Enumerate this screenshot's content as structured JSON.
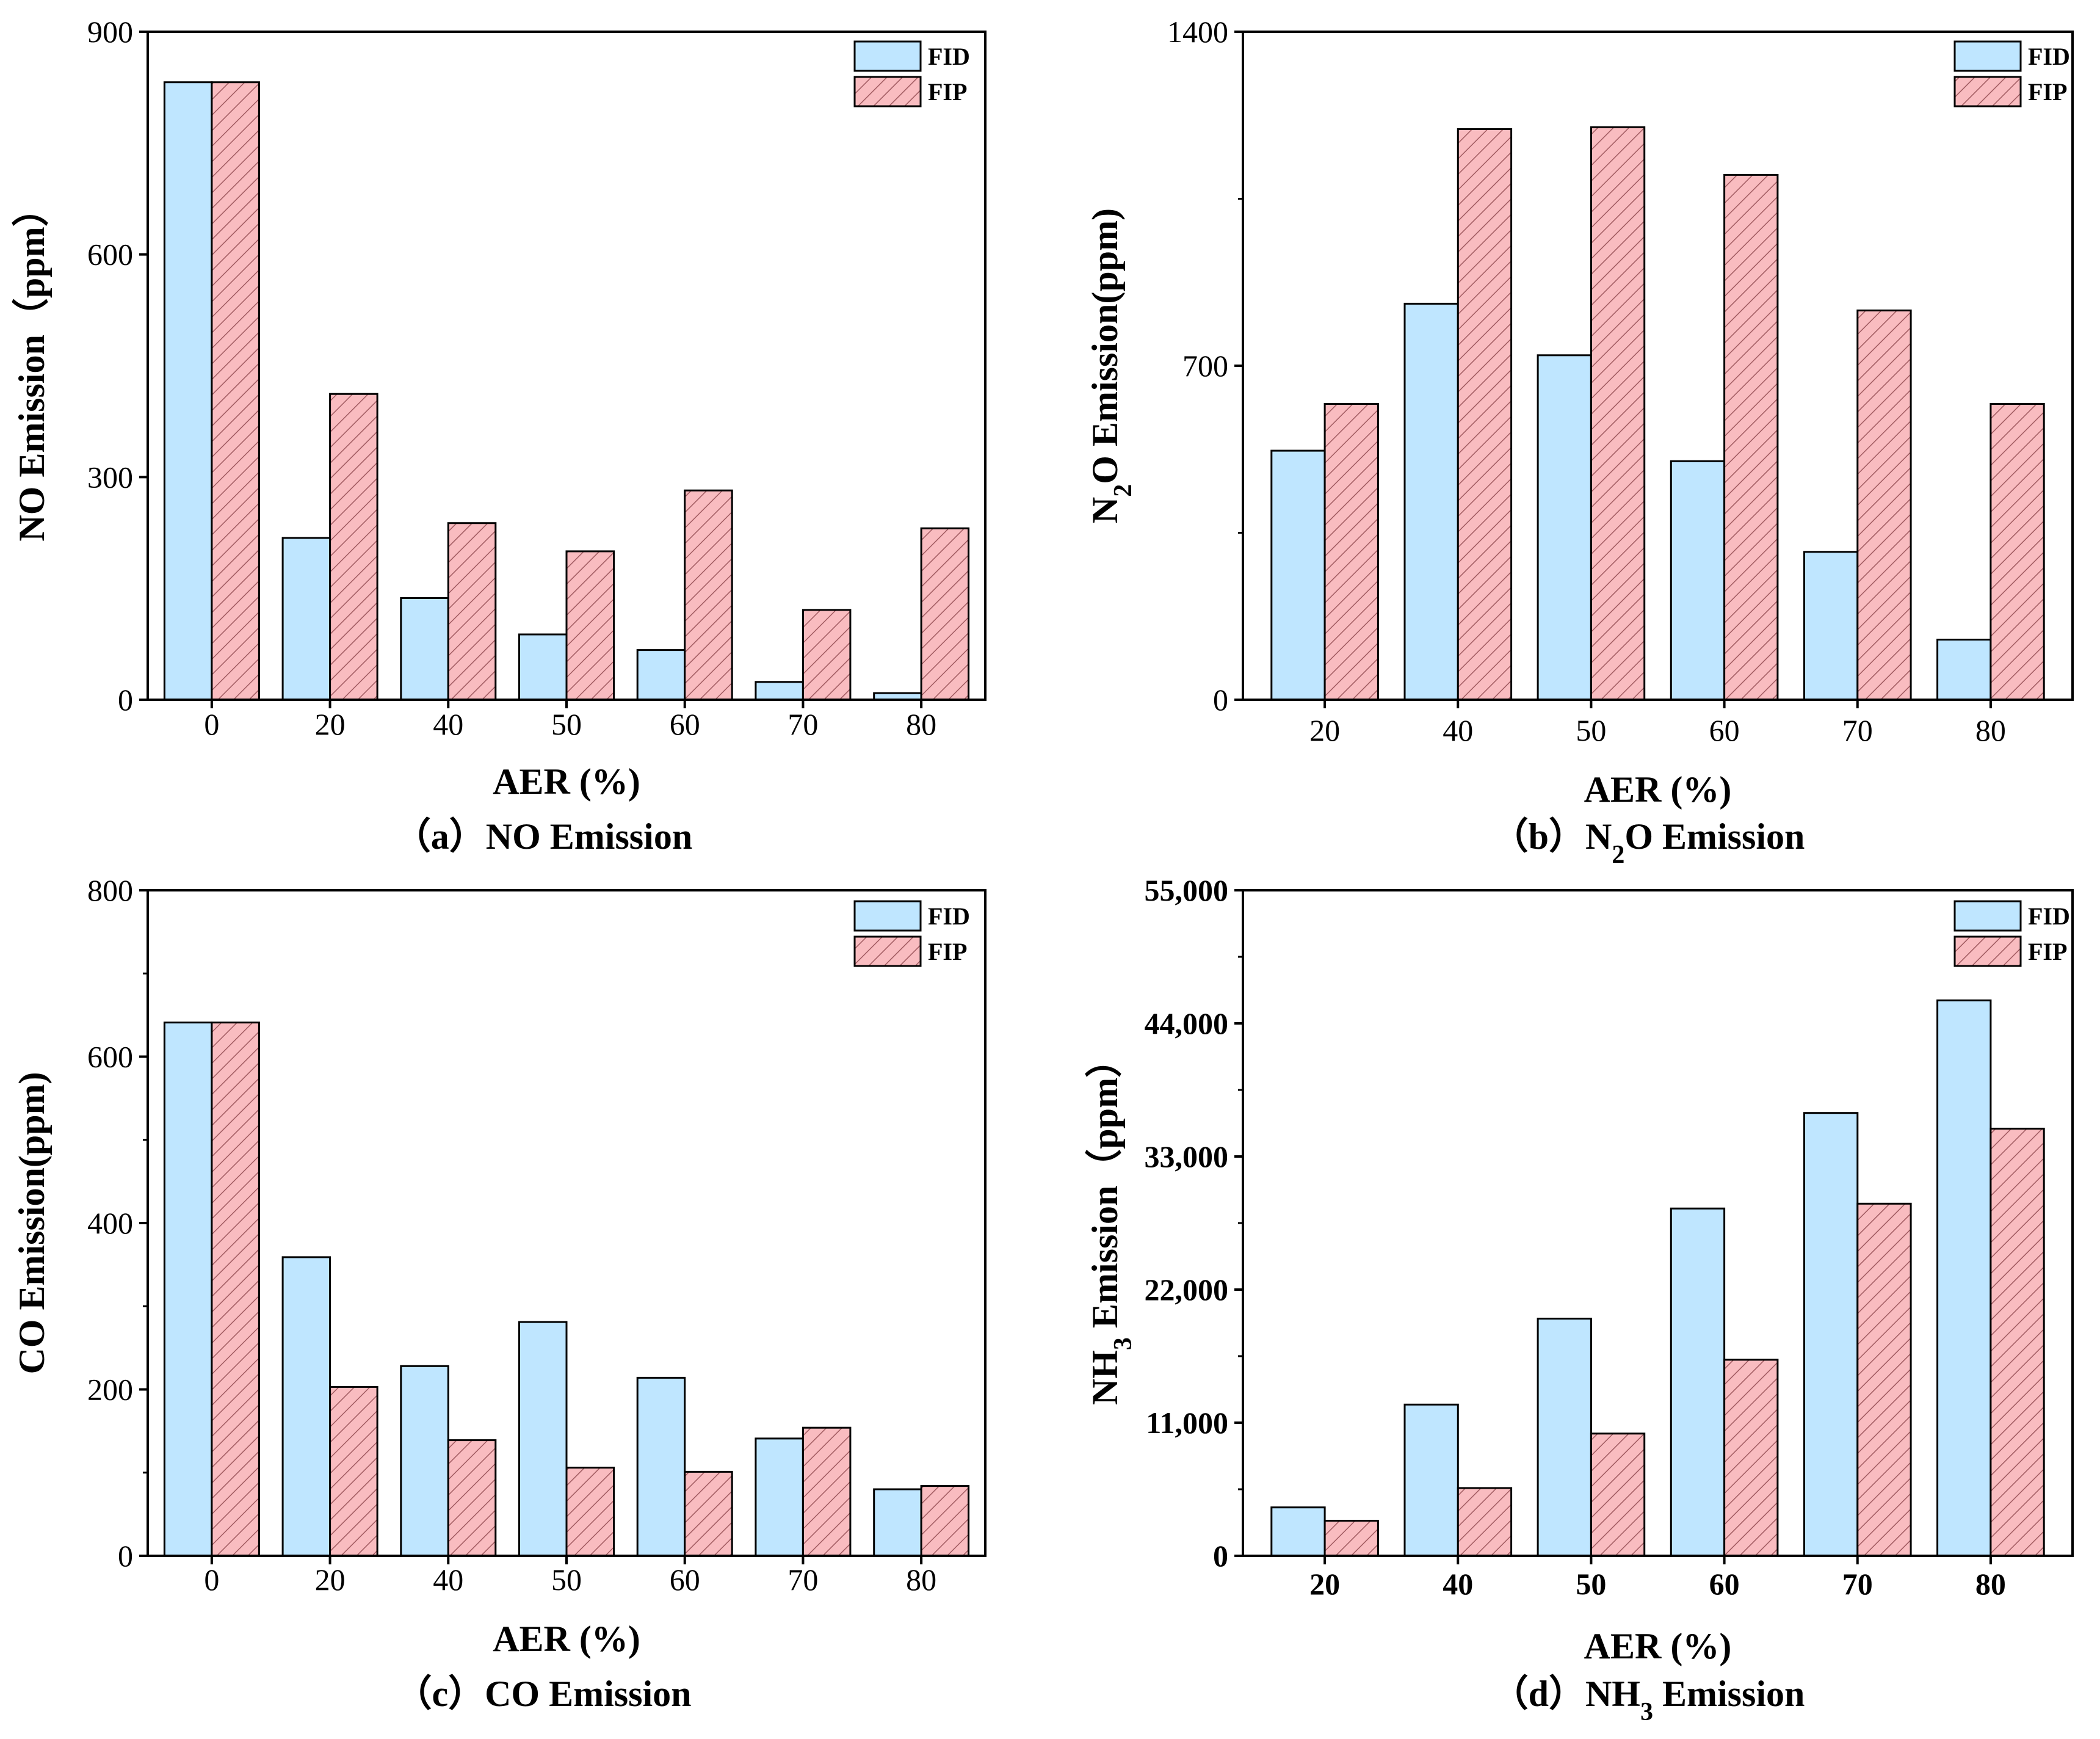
{
  "legend": {
    "fid_label": "FID",
    "fip_label": "FIP"
  },
  "colors": {
    "fid": "#bfe6ff",
    "fip": "#f9bcc0",
    "fip_hatch": "#a05a60",
    "axis": "#000000"
  },
  "chart_data": [
    {
      "id": "a",
      "type": "bar",
      "caption": {
        "prefix": "（a）",
        "text": "NO Emission"
      },
      "ylabel": "NO Emission（ppm）",
      "xlabel": "AER (%)",
      "categories": [
        "0",
        "20",
        "40",
        "50",
        "60",
        "70",
        "80"
      ],
      "ylim": [
        0,
        900
      ],
      "yticks": [
        "0",
        "300",
        "600",
        "900"
      ],
      "ytick_values": [
        0,
        300,
        600,
        900
      ],
      "series": [
        {
          "name": "FID",
          "values": [
            832,
            218,
            137,
            88,
            67,
            24,
            9
          ]
        },
        {
          "name": "FIP",
          "values": [
            832,
            412,
            238,
            200,
            282,
            121,
            231
          ]
        }
      ]
    },
    {
      "id": "b",
      "type": "bar",
      "caption": {
        "prefix": "（b）",
        "text": "N2O Emission"
      },
      "ylabel": "N2O Emission(ppm)",
      "xlabel": "AER (%)",
      "categories": [
        "20",
        "40",
        "50",
        "60",
        "70",
        "80"
      ],
      "ylim": [
        0,
        1400
      ],
      "yticks": [
        "0",
        "700",
        "1400"
      ],
      "ytick_values": [
        0,
        700,
        1400
      ],
      "series": [
        {
          "name": "FID",
          "values": [
            522,
            830,
            722,
            500,
            310,
            126
          ]
        },
        {
          "name": "FIP",
          "values": [
            620,
            1196,
            1200,
            1100,
            816,
            620
          ]
        }
      ]
    },
    {
      "id": "c",
      "type": "bar",
      "caption": {
        "prefix": "（c）",
        "text": "CO Emission"
      },
      "ylabel": "CO Emission(ppm)",
      "xlabel": "AER (%)",
      "categories": [
        "0",
        "20",
        "40",
        "50",
        "60",
        "70",
        "80"
      ],
      "ylim": [
        0,
        800
      ],
      "yticks": [
        "0",
        "200",
        "400",
        "600",
        "800"
      ],
      "ytick_values": [
        0,
        200,
        400,
        600,
        800
      ],
      "series": [
        {
          "name": "FID",
          "values": [
            641,
            359,
            228,
            281,
            214,
            141,
            80
          ]
        },
        {
          "name": "FIP",
          "values": [
            641,
            203,
            139,
            106,
            101,
            154,
            84
          ]
        }
      ]
    },
    {
      "id": "d",
      "type": "bar",
      "caption": {
        "prefix": "（d）",
        "text": "NH3 Emission"
      },
      "ylabel": "NH3 Emission（ppm）",
      "xlabel": "AER (%)",
      "categories": [
        "20",
        "40",
        "50",
        "60",
        "70",
        "80"
      ],
      "ylim": [
        0,
        55000
      ],
      "yticks": [
        "0",
        "11,000",
        "22,000",
        "33,000",
        "44,000",
        "55,000"
      ],
      "ytick_values": [
        0,
        11000,
        22000,
        33000,
        44000,
        55000
      ],
      "series": [
        {
          "name": "FID",
          "values": [
            4000,
            12500,
            19600,
            28700,
            36600,
            45900
          ]
        },
        {
          "name": "FIP",
          "values": [
            2900,
            5600,
            10100,
            16200,
            29100,
            35300
          ]
        }
      ]
    }
  ]
}
